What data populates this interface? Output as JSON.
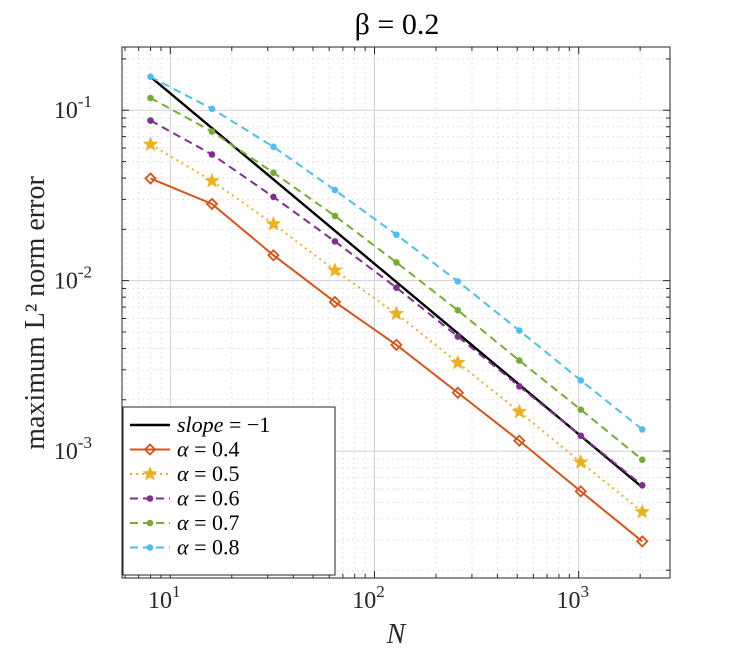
{
  "chart_data": {
    "type": "line",
    "title": "β = 0.2",
    "xlabel": "N",
    "ylabel": "maximum L² norm error",
    "xscale": "log",
    "yscale": "log",
    "xlim": [
      5.8,
      2800
    ],
    "ylim": [
      0.00018,
      0.235
    ],
    "grid": true,
    "legend_position": "bottom-left",
    "x_ticks": [
      {
        "value": 10,
        "base": "10",
        "exp": "1"
      },
      {
        "value": 100,
        "base": "10",
        "exp": "2"
      },
      {
        "value": 1000,
        "base": "10",
        "exp": "3"
      }
    ],
    "y_ticks": [
      {
        "value": 0.001,
        "base": "10",
        "exp": "-3"
      },
      {
        "value": 0.01,
        "base": "10",
        "exp": "-2"
      },
      {
        "value": 0.1,
        "base": "10",
        "exp": "-1"
      }
    ],
    "x": [
      8,
      16,
      32,
      64,
      128,
      256,
      512,
      1024,
      2048
    ],
    "series": [
      {
        "name": "slope = −1",
        "label_lhs": "slope",
        "label_rhs": "= −1",
        "color": "#000000",
        "dash": "solid",
        "marker": "none",
        "x": [
          8,
          2048
        ],
        "values": [
          0.157,
          0.000613
        ]
      },
      {
        "name": "α = 0.4",
        "label_lhs": "α",
        "label_rhs": "= 0.4",
        "color": "#D95319",
        "dash": "solid",
        "marker": "diamond",
        "values": [
          0.0398,
          0.0282,
          0.0141,
          0.0075,
          0.0042,
          0.0022,
          0.00115,
          0.00058,
          0.000295
        ]
      },
      {
        "name": "α = 0.5",
        "label_lhs": "α",
        "label_rhs": "= 0.5",
        "color": "#EDB120",
        "dash": "dotted",
        "marker": "star",
        "values": [
          0.063,
          0.0385,
          0.0215,
          0.0115,
          0.0064,
          0.0033,
          0.0017,
          0.00086,
          0.00044
        ]
      },
      {
        "name": "α = 0.6",
        "label_lhs": "α",
        "label_rhs": "= 0.6",
        "color": "#7E2F8E",
        "dash": "dashed",
        "marker": "dot",
        "values": [
          0.087,
          0.055,
          0.031,
          0.017,
          0.0091,
          0.0047,
          0.0024,
          0.00123,
          0.00063
        ]
      },
      {
        "name": "α = 0.7",
        "label_lhs": "α",
        "label_rhs": "= 0.7",
        "color": "#77AC30",
        "dash": "dashed",
        "marker": "dot",
        "values": [
          0.118,
          0.075,
          0.043,
          0.024,
          0.0128,
          0.0067,
          0.0034,
          0.00175,
          0.00089
        ]
      },
      {
        "name": "α = 0.8",
        "label_lhs": "α",
        "label_rhs": "= 0.8",
        "color": "#4DBEEE",
        "dash": "dashed",
        "marker": "dot",
        "values": [
          0.157,
          0.102,
          0.061,
          0.034,
          0.0186,
          0.0099,
          0.0051,
          0.0026,
          0.00134
        ]
      }
    ]
  }
}
